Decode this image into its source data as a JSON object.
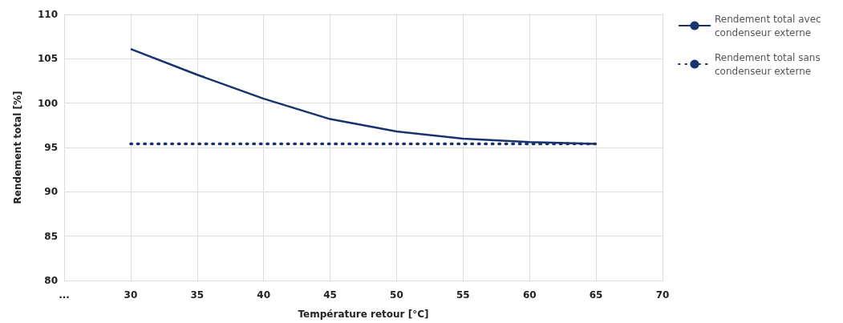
{
  "chart_data": {
    "type": "line",
    "xlabel": "Température retour [°C]",
    "ylabel": "Rendement total [%]",
    "x": [
      30,
      35,
      40,
      45,
      50,
      55,
      60,
      65
    ],
    "series": [
      {
        "name": "Rendement total avec condenseur externe",
        "color": "#17336e",
        "line_style": "solid",
        "values": [
          106.1,
          103.2,
          100.5,
          98.2,
          96.8,
          96.0,
          95.6,
          95.4
        ]
      },
      {
        "name": "Rendement total sans condenseur externe",
        "color": "#17336e",
        "line_style": "dotted",
        "values": [
          95.4,
          95.4,
          95.4,
          95.4,
          95.4,
          95.4,
          95.4,
          95.4
        ]
      }
    ],
    "xlim": [
      25,
      70
    ],
    "xticks": [
      {
        "value": 25,
        "label": "..."
      },
      30,
      35,
      40,
      45,
      50,
      55,
      60,
      65,
      70
    ],
    "ylim": [
      80,
      110
    ],
    "yticks": [
      80,
      85,
      90,
      95,
      100,
      105,
      110
    ],
    "grid": true,
    "legend": "top right",
    "marker": "none"
  }
}
